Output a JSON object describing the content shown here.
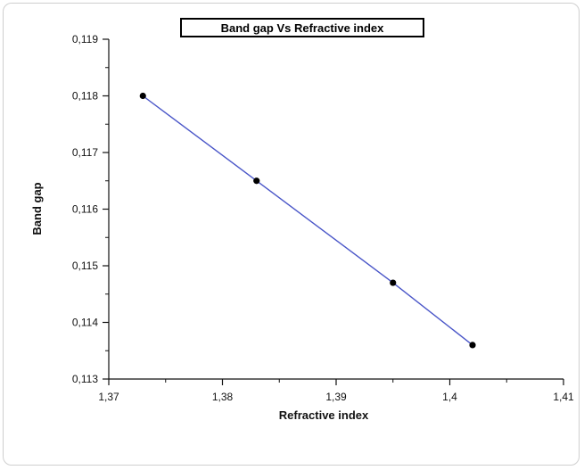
{
  "chart_data": {
    "type": "line",
    "title": "Band gap Vs Refractive index",
    "xlabel": "Refractive index",
    "ylabel": "Band gap",
    "xlim": [
      1.37,
      1.41
    ],
    "ylim": [
      0.113,
      0.119
    ],
    "x_ticks": [
      "1,37",
      "1,38",
      "1,39",
      "1,4",
      "1,41"
    ],
    "y_ticks": [
      "0,113",
      "0,114",
      "0,115",
      "0,116",
      "0,117",
      "0,118",
      "0,119"
    ],
    "series": [
      {
        "x": [
          1.373,
          1.383,
          1.395,
          1.402
        ],
        "y": [
          0.118,
          0.1165,
          0.1147,
          0.1136
        ]
      }
    ],
    "line_color": "#4a56c8",
    "marker_color": "#000000",
    "grid": false,
    "legend": "none"
  }
}
